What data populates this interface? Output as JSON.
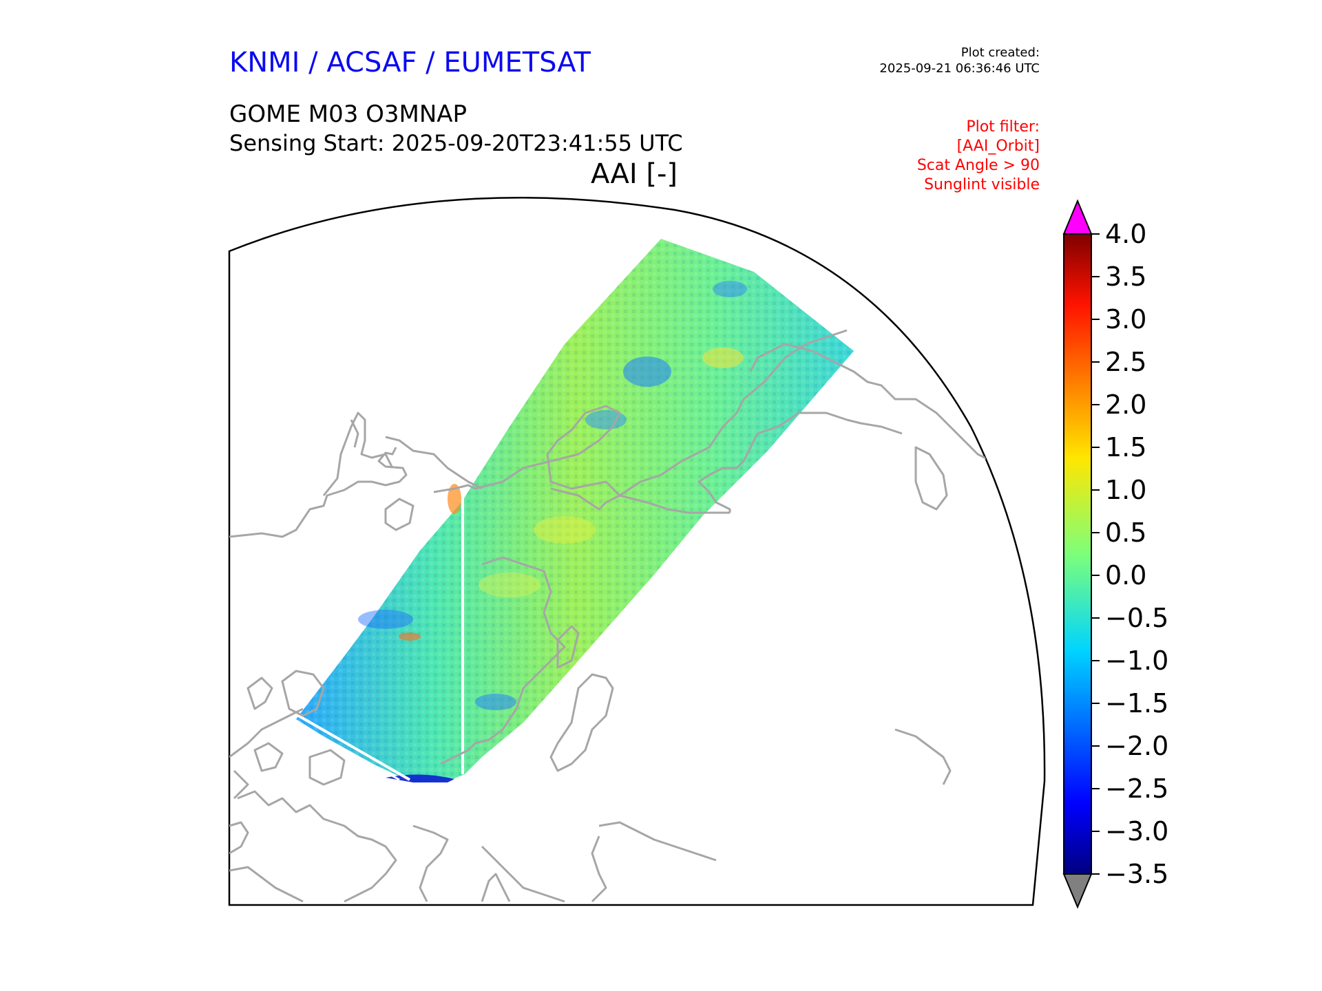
{
  "header": {
    "org_title": "KNMI / ACSAF / EUMETSAT",
    "plot_created_label": "Plot created:",
    "plot_created_time": "2025-09-21 06:36:46 UTC",
    "product_name": "GOME M03 O3MNAP",
    "sensing_start": "Sensing Start: 2025-09-20T23:41:55 UTC",
    "variable": "AAI [-]"
  },
  "plot_filter": {
    "title": "Plot filter:",
    "lines": [
      "[AAI_Orbit]",
      "Scat Angle > 90",
      "Sunglint visible"
    ]
  },
  "colorbar": {
    "min": -3.5,
    "max": 4.0,
    "ticks": [
      "4.0",
      "3.5",
      "3.0",
      "2.5",
      "2.0",
      "1.5",
      "1.0",
      "0.5",
      "0.0",
      "−0.5",
      "−1.0",
      "−1.5",
      "−2.0",
      "−2.5",
      "−3.0",
      "−3.5"
    ],
    "over_color": "#ff00ff",
    "under_color": "#808080",
    "colormap": "jet"
  },
  "colors": {
    "title": "#0a0af0",
    "filter": "#ff0000",
    "coastline": "#a6a6a6"
  }
}
